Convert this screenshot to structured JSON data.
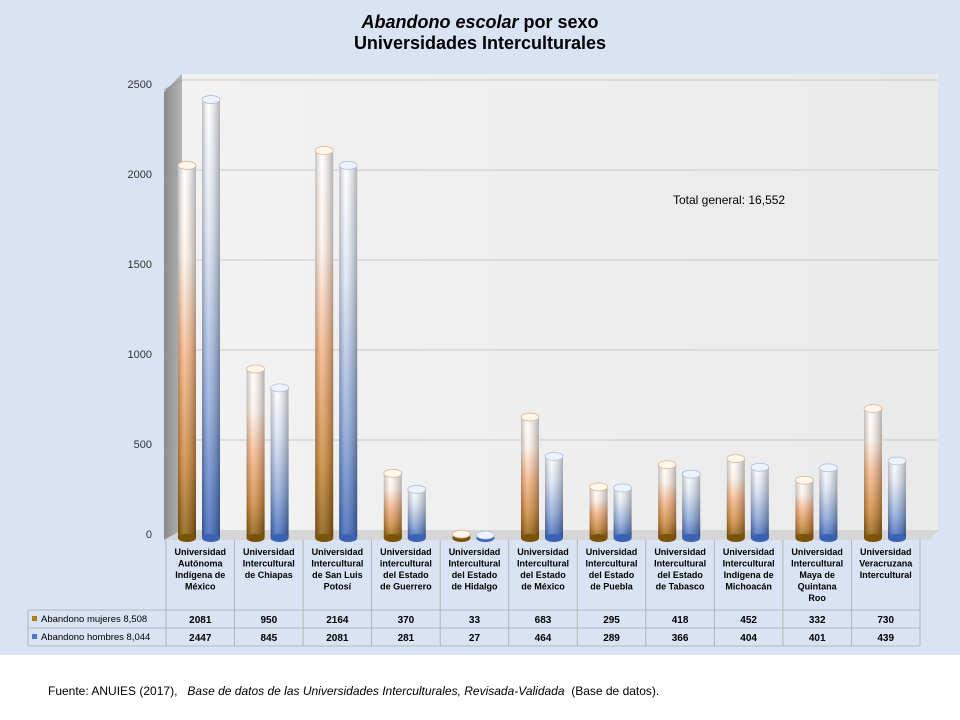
{
  "title": {
    "italic": "Abandono escolar",
    "rest": " por sexo",
    "line2": "Universidades Interculturales"
  },
  "annotation": "Total general: 16,552",
  "footer": {
    "prefix": "Fuente: ANUIES (2017),",
    "italic": "Base de datos de las Universidades Interculturales, Revisada-Validada",
    "suffix": "(Base de datos)."
  },
  "chart_data": {
    "type": "bar",
    "title": "Abandono escolar por sexo Universidades Interculturales",
    "categories": [
      [
        "Universidad",
        "Autónoma",
        "Indígena de",
        "México"
      ],
      [
        "Universidad",
        "Intercultural",
        "de Chiapas"
      ],
      [
        "Universidad",
        "Intercultural",
        "de San Luis",
        "Potosí"
      ],
      [
        "Universidad",
        "intercultural",
        "del Estado",
        "de Guerrero"
      ],
      [
        "Universidad",
        "Intercultural",
        "del Estado",
        "de Hidalgo"
      ],
      [
        "Universidad",
        "Intercultural",
        "del Estado",
        "de México"
      ],
      [
        "Universidad",
        "Intercultural",
        "del Estado",
        "de Puebla"
      ],
      [
        "Universidad",
        "Intercultural",
        "del Estado",
        "de Tabasco"
      ],
      [
        "Universidad",
        "Intercultural",
        "Indígena de",
        "Michoacán"
      ],
      [
        "Universidad",
        "Intercultural",
        "Maya de",
        "Quintana",
        "Roo"
      ],
      [
        "Universidad",
        "Veracruzana",
        "Intercultural"
      ]
    ],
    "series": [
      {
        "name": "Abandono mujeres 8,508",
        "color": "#b07d1a",
        "values": [
          2081,
          950,
          2164,
          370,
          33,
          683,
          295,
          418,
          452,
          332,
          730
        ]
      },
      {
        "name": "Abandono hombres 8,044",
        "color": "#4a78c8",
        "values": [
          2447,
          845,
          2081,
          281,
          27,
          464,
          289,
          366,
          404,
          401,
          439
        ]
      }
    ],
    "yticks": [
      0,
      500,
      1000,
      1500,
      2000,
      2500
    ],
    "ylim": [
      0,
      2500
    ],
    "grid": true,
    "legend": "data-table"
  }
}
